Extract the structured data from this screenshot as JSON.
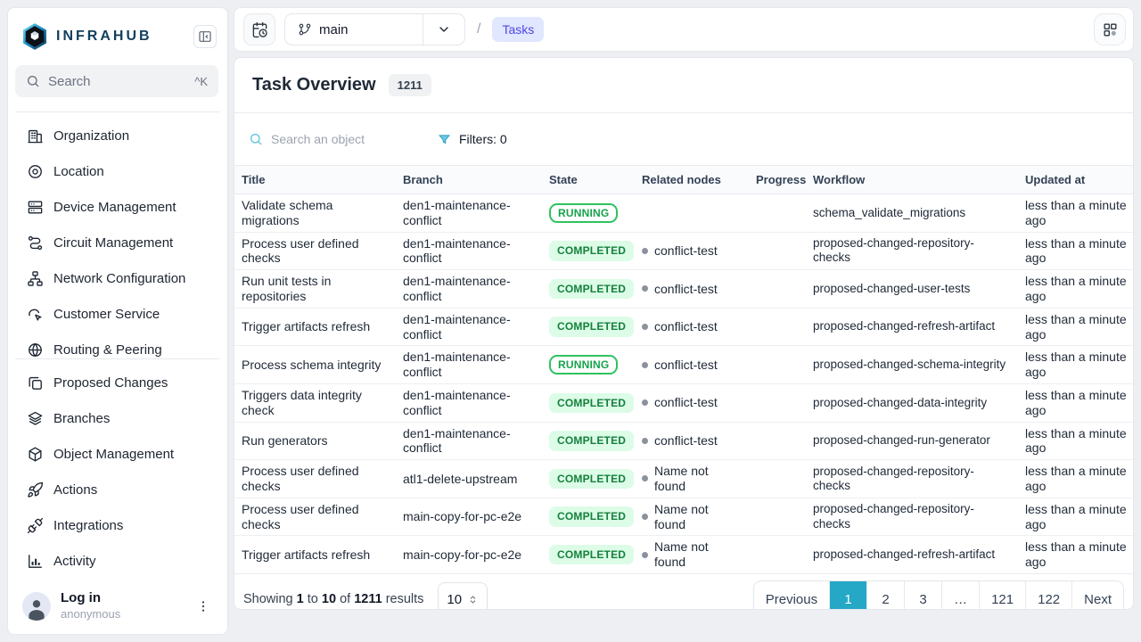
{
  "colors": {
    "accent_teal": "#25a8c6",
    "badge_completed_bg": "#dcfce7",
    "badge_completed_text": "#15803d",
    "badge_running_border": "#2fc261",
    "breadcrumb_bg": "#e0e7ff",
    "breadcrumb_text": "#4f46e5"
  },
  "brand": {
    "name": "INFRAHUB"
  },
  "sidebar": {
    "search": {
      "placeholder": "Search",
      "shortcut": "^K"
    },
    "groups": [
      {
        "items": [
          {
            "icon": "building-icon",
            "label": "Organization"
          },
          {
            "icon": "location-icon",
            "label": "Location"
          },
          {
            "icon": "server-icon",
            "label": "Device Management"
          },
          {
            "icon": "route-icon",
            "label": "Circuit Management"
          },
          {
            "icon": "network-icon",
            "label": "Network Configuration"
          },
          {
            "icon": "customer-icon",
            "label": "Customer Service"
          },
          {
            "icon": "globe-icon",
            "label": "Routing & Peering"
          }
        ]
      },
      {
        "items": [
          {
            "icon": "copy-icon",
            "label": "Proposed Changes"
          },
          {
            "icon": "layers-icon",
            "label": "Branches"
          },
          {
            "icon": "cube-icon",
            "label": "Object Management"
          },
          {
            "icon": "rocket-icon",
            "label": "Actions"
          },
          {
            "icon": "plug-icon",
            "label": "Integrations"
          },
          {
            "icon": "chart-icon",
            "label": "Activity"
          }
        ]
      }
    ],
    "user": {
      "action": "Log in",
      "name": "anonymous"
    }
  },
  "topbar": {
    "branch": "main",
    "breadcrumb_separator": "/",
    "breadcrumb": "Tasks"
  },
  "page": {
    "title": "Task Overview",
    "count": "1211"
  },
  "toolbar": {
    "search_placeholder": "Search an object",
    "filters_label": "Filters: 0"
  },
  "table": {
    "columns": [
      "Title",
      "Branch",
      "State",
      "Related nodes",
      "Progress",
      "Workflow",
      "Updated at"
    ],
    "rows": [
      {
        "title": "Validate schema migrations",
        "branch": "den1-maintenance-conflict",
        "state": "RUNNING",
        "related": "",
        "progress": "",
        "workflow": "schema_validate_migrations",
        "updated": "less than a minute ago"
      },
      {
        "title": "Process user defined checks",
        "branch": "den1-maintenance-conflict",
        "state": "COMPLETED",
        "related": "conflict-test",
        "progress": "",
        "workflow": "proposed-changed-repository-checks",
        "updated": "less than a minute ago"
      },
      {
        "title": "Run unit tests in repositories",
        "branch": "den1-maintenance-conflict",
        "state": "COMPLETED",
        "related": "conflict-test",
        "progress": "",
        "workflow": "proposed-changed-user-tests",
        "updated": "less than a minute ago"
      },
      {
        "title": "Trigger artifacts refresh",
        "branch": "den1-maintenance-conflict",
        "state": "COMPLETED",
        "related": "conflict-test",
        "progress": "",
        "workflow": "proposed-changed-refresh-artifact",
        "updated": "less than a minute ago"
      },
      {
        "title": "Process schema integrity",
        "branch": "den1-maintenance-conflict",
        "state": "RUNNING",
        "related": "conflict-test",
        "progress": "",
        "workflow": "proposed-changed-schema-integrity",
        "updated": "less than a minute ago"
      },
      {
        "title": "Triggers data integrity check",
        "branch": "den1-maintenance-conflict",
        "state": "COMPLETED",
        "related": "conflict-test",
        "progress": "",
        "workflow": "proposed-changed-data-integrity",
        "updated": "less than a minute ago"
      },
      {
        "title": "Run generators",
        "branch": "den1-maintenance-conflict",
        "state": "COMPLETED",
        "related": "conflict-test",
        "progress": "",
        "workflow": "proposed-changed-run-generator",
        "updated": "less than a minute ago"
      },
      {
        "title": "Process user defined checks",
        "branch": "atl1-delete-upstream",
        "state": "COMPLETED",
        "related": "Name not found",
        "progress": "",
        "workflow": "proposed-changed-repository-checks",
        "updated": "less than a minute ago"
      },
      {
        "title": "Process user defined checks",
        "branch": "main-copy-for-pc-e2e",
        "state": "COMPLETED",
        "related": "Name not found",
        "progress": "",
        "workflow": "proposed-changed-repository-checks",
        "updated": "less than a minute ago"
      },
      {
        "title": "Trigger artifacts refresh",
        "branch": "main-copy-for-pc-e2e",
        "state": "COMPLETED",
        "related": "Name not found",
        "progress": "",
        "workflow": "proposed-changed-refresh-artifact",
        "updated": "less than a minute ago"
      }
    ]
  },
  "footer": {
    "showing": {
      "word1": "Showing",
      "from": "1",
      "word2": "to",
      "to": "10",
      "word3": "of",
      "total": "1211",
      "word4": "results"
    },
    "page_size": "10",
    "pagination": {
      "pages": [
        "Previous",
        "1",
        "2",
        "3",
        "…",
        "121",
        "122",
        "Next"
      ],
      "active": "1"
    }
  }
}
